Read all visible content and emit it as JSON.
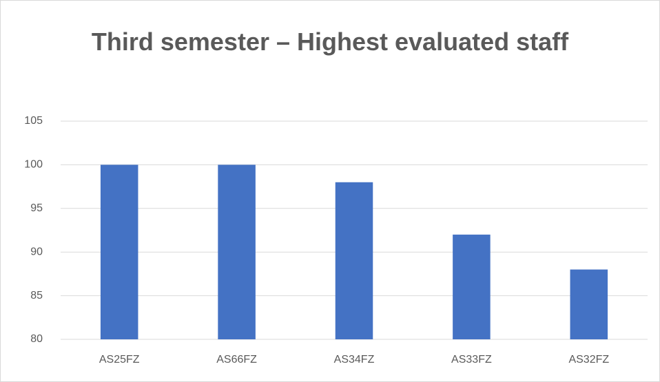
{
  "chart_data": {
    "type": "bar",
    "title": "Third semester – Highest evaluated staff",
    "categories": [
      "AS25FZ",
      "AS66FZ",
      "AS34FZ",
      "AS33FZ",
      "AS32FZ"
    ],
    "values": [
      100,
      100,
      98,
      92,
      88
    ],
    "color": "#4472c4",
    "ylim": [
      80,
      105
    ],
    "yticks": [
      80,
      85,
      90,
      95,
      100,
      105
    ],
    "grid": true
  }
}
